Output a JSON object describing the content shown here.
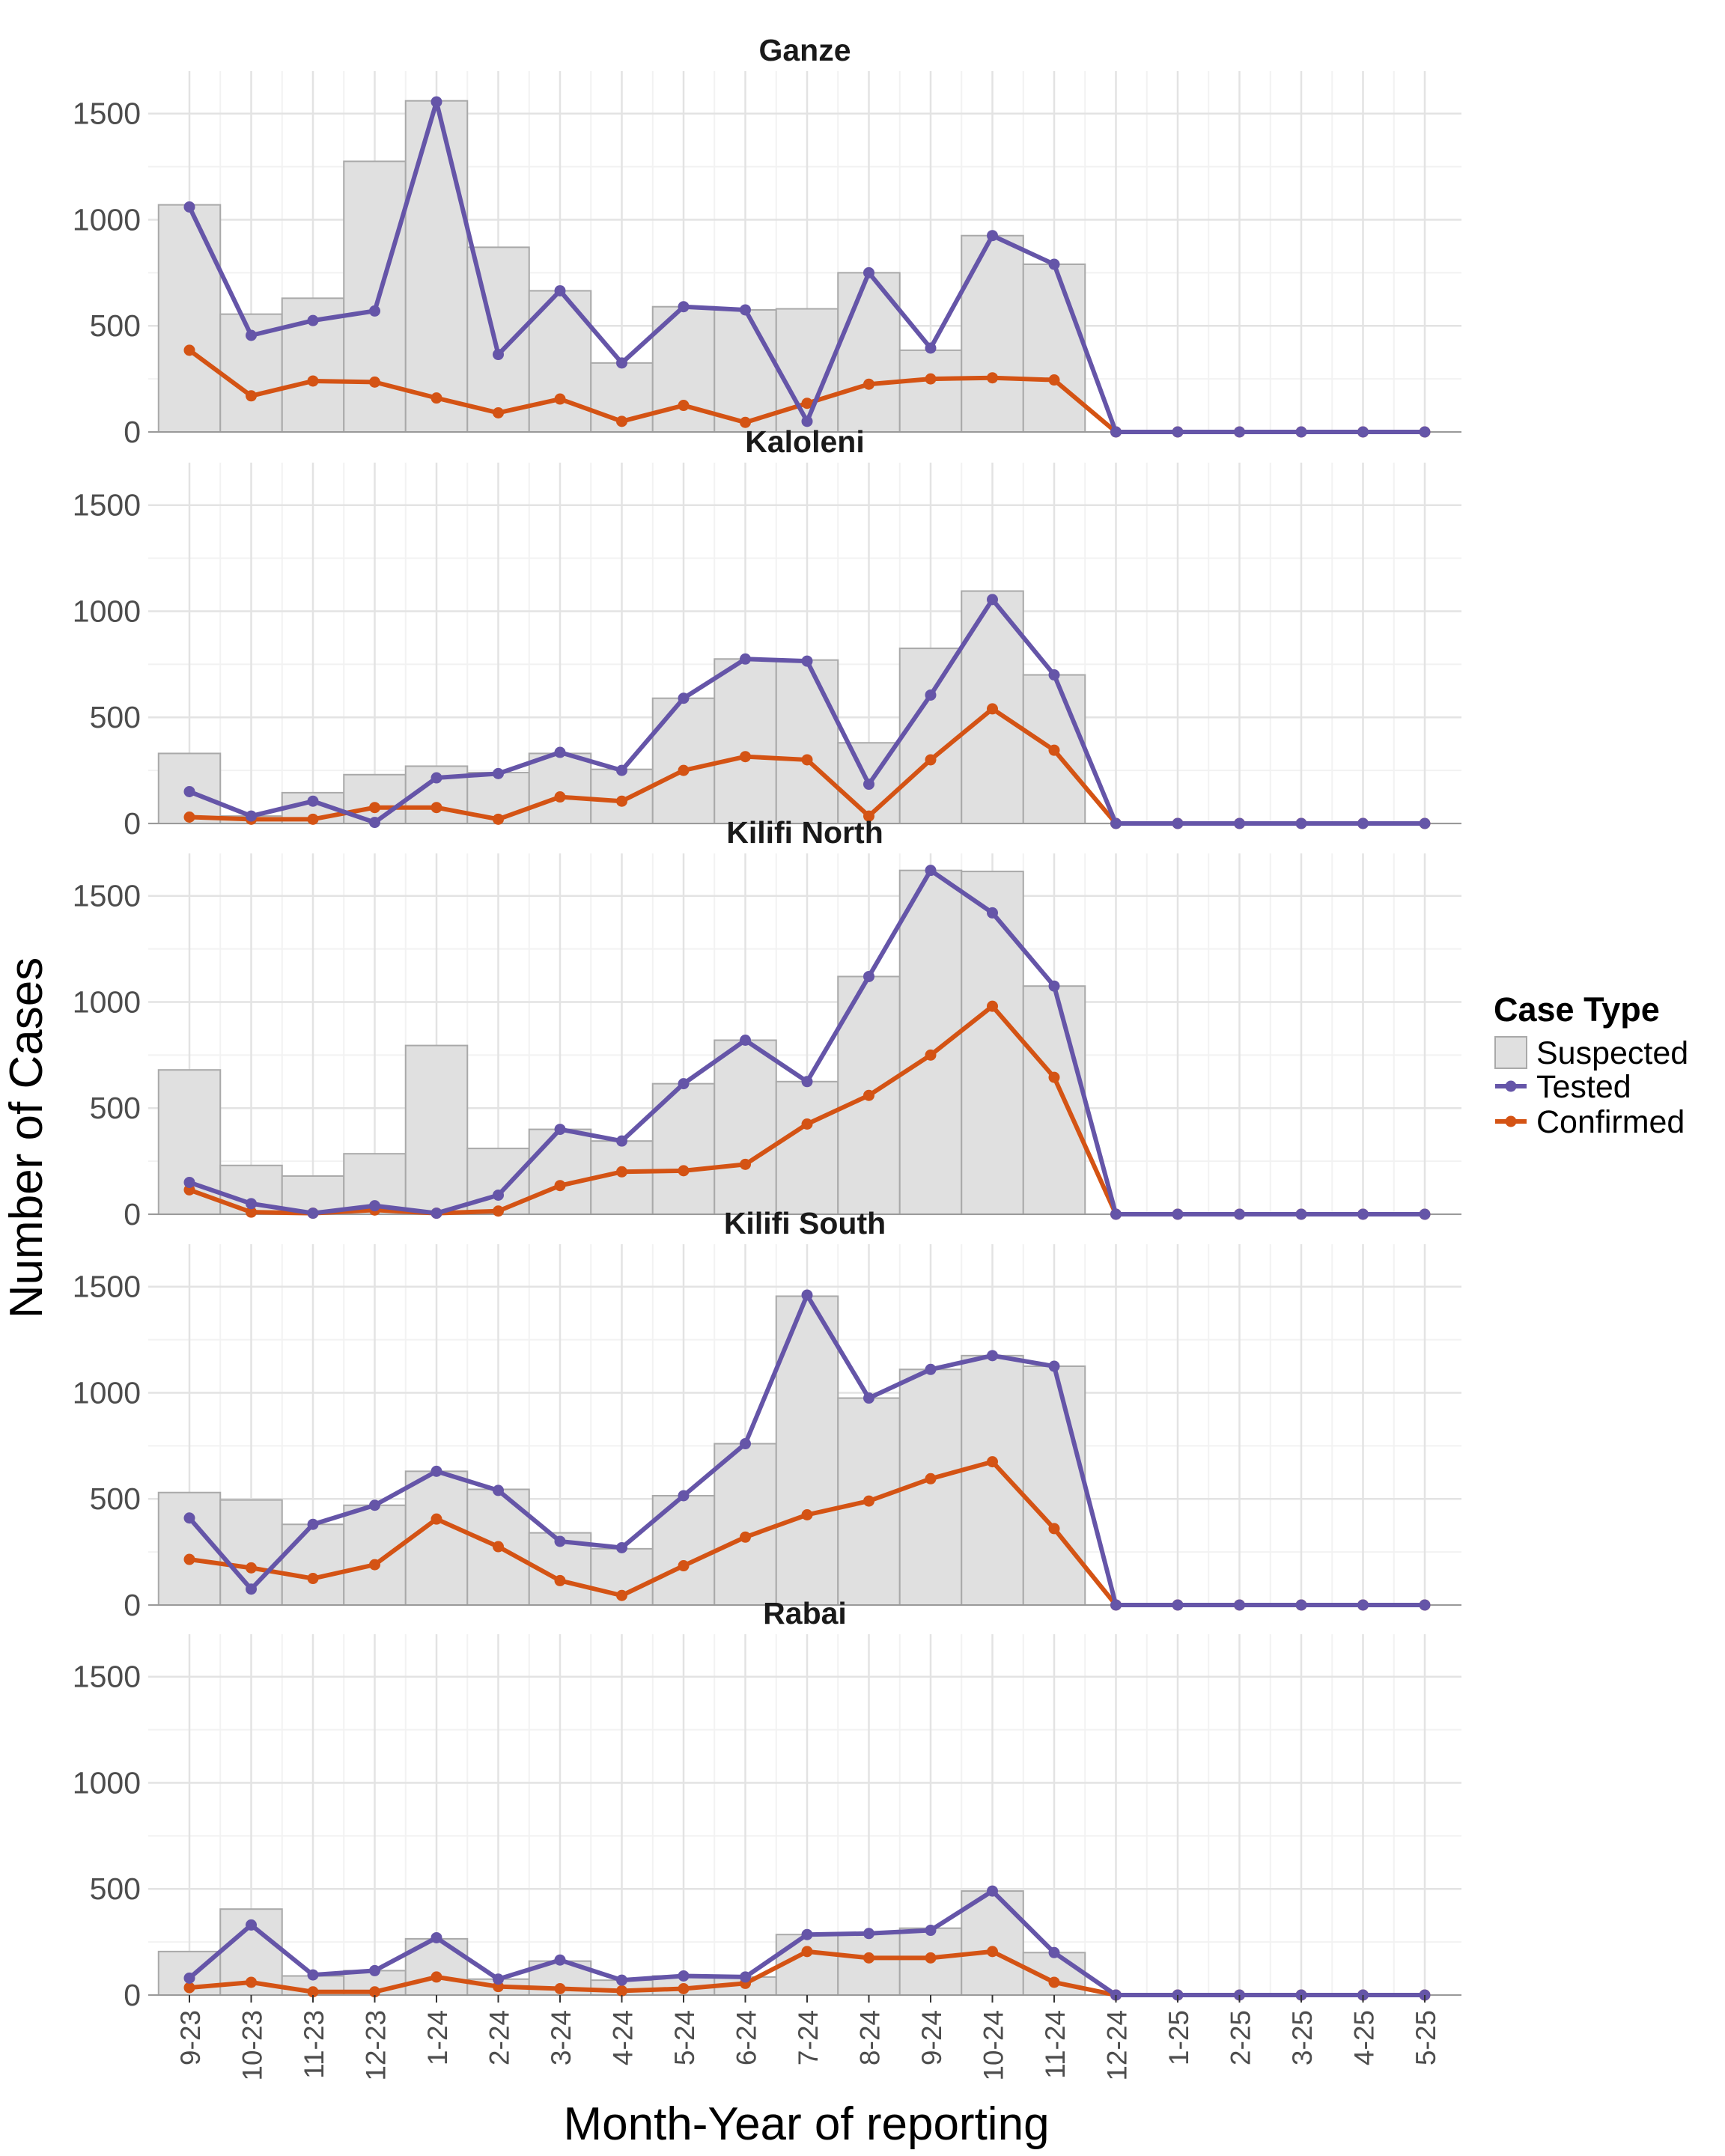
{
  "chart_data": {
    "type": "bar",
    "xlabel": "Month-Year of reporting",
    "ylabel": "Number of Cases",
    "ylim": [
      0,
      1700
    ],
    "yticks": [
      0,
      500,
      1000,
      1500
    ],
    "grid": true,
    "legend": {
      "title": "Case Type",
      "placement": "right",
      "entries": [
        {
          "label": "Suspected",
          "kind": "bar",
          "color": "#e0e0e0"
        },
        {
          "label": "Tested",
          "kind": "line",
          "color": "#6555a8"
        },
        {
          "label": "Confirmed",
          "kind": "line",
          "color": "#d45314"
        }
      ]
    },
    "categories": [
      "9-23",
      "10-23",
      "11-23",
      "12-23",
      "1-24",
      "2-24",
      "3-24",
      "4-24",
      "5-24",
      "6-24",
      "7-24",
      "8-24",
      "9-24",
      "10-24",
      "11-24",
      "12-24",
      "1-25",
      "2-25",
      "3-25",
      "4-25",
      "5-25"
    ],
    "panels": [
      {
        "title": "Ganze",
        "series": [
          {
            "name": "Suspected",
            "values": [
              1070,
              555,
              630,
              1275,
              1560,
              870,
              665,
              325,
              590,
              575,
              580,
              750,
              385,
              925,
              790,
              0,
              0,
              0,
              0,
              0,
              0
            ]
          },
          {
            "name": "Tested",
            "values": [
              1060,
              455,
              525,
              570,
              1555,
              365,
              665,
              325,
              590,
              575,
              50,
              750,
              395,
              925,
              790,
              0,
              0,
              0,
              0,
              0,
              0
            ]
          },
          {
            "name": "Confirmed",
            "values": [
              385,
              170,
              240,
              235,
              160,
              90,
              155,
              50,
              125,
              45,
              135,
              225,
              250,
              255,
              245,
              0,
              0,
              0,
              0,
              0,
              0
            ]
          }
        ]
      },
      {
        "title": "Kaloleni",
        "series": [
          {
            "name": "Suspected",
            "values": [
              330,
              35,
              145,
              230,
              270,
              240,
              330,
              255,
              590,
              775,
              770,
              380,
              825,
              1095,
              700,
              0,
              0,
              0,
              0,
              0,
              0
            ]
          },
          {
            "name": "Tested",
            "values": [
              150,
              35,
              105,
              5,
              215,
              235,
              335,
              250,
              590,
              775,
              765,
              185,
              605,
              1055,
              700,
              0,
              0,
              0,
              0,
              0,
              0
            ]
          },
          {
            "name": "Confirmed",
            "values": [
              30,
              20,
              20,
              75,
              75,
              20,
              125,
              105,
              250,
              315,
              300,
              35,
              300,
              540,
              345,
              0,
              0,
              0,
              0,
              0,
              0
            ]
          }
        ]
      },
      {
        "title": "Kilifi North",
        "series": [
          {
            "name": "Suspected",
            "values": [
              680,
              230,
              180,
              285,
              795,
              310,
              400,
              345,
              615,
              820,
              625,
              1120,
              1620,
              1615,
              1075,
              0,
              0,
              0,
              0,
              0,
              0
            ]
          },
          {
            "name": "Tested",
            "values": [
              150,
              50,
              5,
              40,
              5,
              90,
              400,
              345,
              615,
              820,
              625,
              1120,
              1620,
              1420,
              1075,
              0,
              0,
              0,
              0,
              0,
              0
            ]
          },
          {
            "name": "Confirmed",
            "values": [
              115,
              10,
              5,
              20,
              5,
              15,
              135,
              200,
              205,
              235,
              425,
              560,
              750,
              980,
              645,
              0,
              0,
              0,
              0,
              0,
              0
            ]
          }
        ]
      },
      {
        "title": "Kilifi South",
        "series": [
          {
            "name": "Suspected",
            "values": [
              530,
              495,
              380,
              470,
              630,
              545,
              340,
              265,
              515,
              760,
              1455,
              975,
              1110,
              1175,
              1125,
              0,
              0,
              0,
              0,
              0,
              0
            ]
          },
          {
            "name": "Tested",
            "values": [
              410,
              75,
              380,
              470,
              630,
              540,
              300,
              270,
              515,
              760,
              1460,
              975,
              1110,
              1175,
              1125,
              0,
              0,
              0,
              0,
              0,
              0
            ]
          },
          {
            "name": "Confirmed",
            "values": [
              215,
              175,
              125,
              190,
              405,
              275,
              115,
              45,
              185,
              320,
              425,
              490,
              595,
              675,
              360,
              0,
              0,
              0,
              0,
              0,
              0
            ]
          }
        ]
      },
      {
        "title": "Rabai",
        "series": [
          {
            "name": "Suspected",
            "values": [
              205,
              405,
              90,
              115,
              265,
              75,
              160,
              70,
              90,
              85,
              285,
              290,
              315,
              490,
              200,
              0,
              0,
              0,
              0,
              0,
              0
            ]
          },
          {
            "name": "Tested",
            "values": [
              80,
              330,
              95,
              115,
              270,
              75,
              165,
              70,
              90,
              85,
              285,
              290,
              305,
              490,
              200,
              0,
              0,
              0,
              0,
              0,
              0
            ]
          },
          {
            "name": "Confirmed",
            "values": [
              35,
              60,
              15,
              15,
              85,
              40,
              30,
              20,
              30,
              55,
              205,
              175,
              175,
              205,
              60,
              0,
              0,
              0,
              0,
              0,
              0
            ]
          }
        ]
      }
    ]
  }
}
